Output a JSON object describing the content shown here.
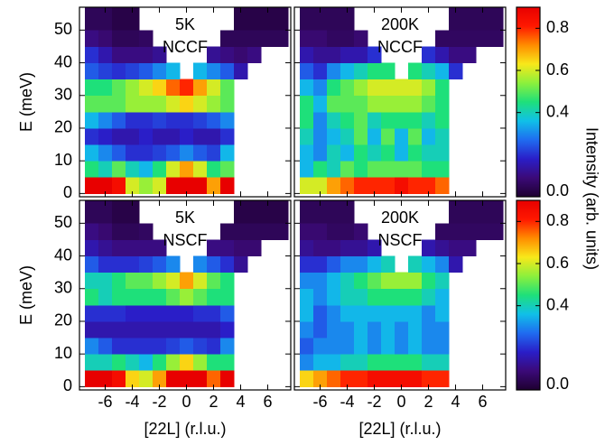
{
  "chart_data": [
    {
      "type": "heatmap",
      "annotation": [
        "5K",
        "NCCF"
      ],
      "ylabel": "E (meV)",
      "xlim": [
        -7.9,
        7.7
      ],
      "ylim": [
        -1,
        57
      ],
      "xticks": [
        -6,
        -4,
        -2,
        0,
        2,
        4,
        6
      ],
      "yticks": [
        0,
        10,
        20,
        30,
        40,
        50
      ],
      "show_xticklabels": false,
      "show_yticklabels": true,
      "xbins": [
        -7.5,
        -6.5,
        -5.5,
        -4.5,
        -3.5,
        -2.5,
        -1.5,
        -0.5,
        0.5,
        1.5,
        2.5,
        3.5,
        4.5,
        5.5,
        6.5,
        7.5
      ],
      "ybins": [
        0,
        5,
        10,
        15,
        20,
        25,
        30,
        35,
        40,
        45,
        50,
        57
      ],
      "z": [
        [
          0.9,
          0.9,
          0.85,
          0.6,
          0.55,
          0.6,
          0.9,
          0.95,
          0.9,
          0.7,
          0.9,
          null,
          null,
          null,
          null
        ],
        [
          0.45,
          0.4,
          0.5,
          0.4,
          0.35,
          0.45,
          0.6,
          0.7,
          0.6,
          0.45,
          0.5,
          null,
          null,
          null,
          null
        ],
        [
          0.35,
          0.3,
          0.25,
          0.2,
          0.2,
          0.22,
          0.25,
          0.3,
          0.25,
          0.22,
          0.35,
          null,
          null,
          null,
          null
        ],
        [
          0.2,
          0.18,
          0.15,
          0.15,
          0.18,
          0.15,
          0.15,
          0.18,
          0.15,
          0.15,
          0.2,
          null,
          null,
          null,
          null
        ],
        [
          0.35,
          0.3,
          0.25,
          0.2,
          0.2,
          0.22,
          0.2,
          0.2,
          0.22,
          0.25,
          0.3,
          null,
          null,
          null,
          null
        ],
        [
          0.5,
          0.5,
          0.5,
          0.55,
          0.55,
          0.55,
          0.6,
          0.65,
          0.6,
          0.55,
          0.5,
          null,
          null,
          null,
          null
        ],
        [
          0.45,
          0.45,
          0.5,
          0.55,
          0.6,
          0.65,
          0.75,
          0.8,
          0.7,
          0.6,
          0.5,
          null,
          null,
          null,
          null
        ],
        [
          0.25,
          0.22,
          0.2,
          0.22,
          0.25,
          0.3,
          0.35,
          null,
          0.35,
          0.3,
          0.25,
          0.15,
          null,
          null,
          null
        ],
        [
          0.2,
          0.15,
          0.1,
          0.1,
          0.1,
          0.12,
          null,
          null,
          null,
          0.12,
          0.1,
          0.08,
          0.1,
          null,
          null
        ],
        [
          0.1,
          0.08,
          0.05,
          0.05,
          0.06,
          null,
          null,
          null,
          null,
          null,
          0.05,
          0.05,
          0.05,
          0.05,
          0.05
        ],
        [
          0.05,
          0.05,
          0.03,
          0.03,
          null,
          null,
          null,
          null,
          null,
          null,
          null,
          0.03,
          0.03,
          0.03,
          0.03
        ]
      ]
    },
    {
      "type": "heatmap",
      "annotation": [
        "200K",
        "NCCF"
      ],
      "xlim": [
        -7.9,
        7.7
      ],
      "ylim": [
        -1,
        57
      ],
      "xticks": [
        -6,
        -4,
        -2,
        0,
        2,
        4,
        6
      ],
      "yticks": [
        0,
        10,
        20,
        30,
        40,
        50
      ],
      "show_xticklabels": false,
      "show_yticklabels": false,
      "xbins": [
        -7.5,
        -6.5,
        -5.5,
        -4.5,
        -3.5,
        -2.5,
        -1.5,
        -0.5,
        0.5,
        1.5,
        2.5,
        3.5,
        4.5,
        5.5,
        6.5,
        7.5
      ],
      "ybins": [
        0,
        5,
        10,
        15,
        20,
        25,
        30,
        35,
        40,
        45,
        50,
        57
      ],
      "z": [
        [
          0.6,
          0.6,
          0.7,
          0.75,
          0.8,
          0.8,
          0.8,
          0.85,
          0.8,
          0.8,
          0.75,
          null,
          null,
          null,
          null
        ],
        [
          0.35,
          0.45,
          0.4,
          0.5,
          0.45,
          0.5,
          0.5,
          0.5,
          0.5,
          0.45,
          0.45,
          null,
          null,
          null,
          null
        ],
        [
          0.35,
          0.3,
          0.4,
          0.35,
          0.45,
          0.4,
          0.45,
          0.35,
          0.45,
          0.4,
          0.4,
          null,
          null,
          null,
          null
        ],
        [
          0.4,
          0.3,
          0.35,
          0.4,
          0.5,
          0.35,
          0.5,
          0.35,
          0.5,
          0.35,
          0.4,
          null,
          null,
          null,
          null
        ],
        [
          0.45,
          0.3,
          0.4,
          0.45,
          0.5,
          0.4,
          0.45,
          0.45,
          0.45,
          0.4,
          0.45,
          null,
          null,
          null,
          null
        ],
        [
          0.45,
          0.35,
          0.5,
          0.5,
          0.5,
          0.55,
          0.55,
          0.55,
          0.55,
          0.5,
          0.45,
          null,
          null,
          null,
          null
        ],
        [
          0.35,
          0.3,
          0.45,
          0.5,
          0.55,
          0.6,
          0.6,
          0.6,
          0.6,
          0.55,
          0.45,
          null,
          null,
          null,
          null
        ],
        [
          0.25,
          0.2,
          0.3,
          0.35,
          0.4,
          0.45,
          0.45,
          null,
          0.45,
          0.4,
          0.35,
          0.2,
          null,
          null,
          null
        ],
        [
          0.15,
          0.12,
          0.12,
          0.15,
          0.15,
          0.2,
          null,
          null,
          null,
          0.2,
          0.15,
          0.1,
          0.1,
          null,
          null
        ],
        [
          0.08,
          0.08,
          0.06,
          0.06,
          0.08,
          null,
          null,
          null,
          null,
          null,
          0.06,
          0.06,
          0.06,
          0.06,
          0.06
        ],
        [
          0.05,
          0.05,
          0.05,
          0.05,
          null,
          null,
          null,
          null,
          null,
          null,
          null,
          0.05,
          0.05,
          0.05,
          0.05
        ]
      ]
    },
    {
      "type": "heatmap",
      "annotation": [
        "5K",
        "NSCF"
      ],
      "ylabel": "E (meV)",
      "xlabel": "[22L] (r.l.u.)",
      "xlim": [
        -7.9,
        7.7
      ],
      "ylim": [
        -1,
        57
      ],
      "xticks": [
        -6,
        -4,
        -2,
        0,
        2,
        4,
        6
      ],
      "yticks": [
        0,
        10,
        20,
        30,
        40,
        50
      ],
      "show_xticklabels": true,
      "show_yticklabels": true,
      "xbins": [
        -7.5,
        -6.5,
        -5.5,
        -4.5,
        -3.5,
        -2.5,
        -1.5,
        -0.5,
        0.5,
        1.5,
        2.5,
        3.5,
        4.5,
        5.5,
        6.5,
        7.5
      ],
      "ybins": [
        0,
        5,
        10,
        15,
        20,
        25,
        30,
        35,
        40,
        45,
        50,
        57
      ],
      "z": [
        [
          0.9,
          0.9,
          0.85,
          0.65,
          0.6,
          0.7,
          0.9,
          0.95,
          0.9,
          0.75,
          0.9,
          null,
          null,
          null,
          null
        ],
        [
          0.4,
          0.4,
          0.45,
          0.4,
          0.35,
          0.45,
          0.55,
          0.65,
          0.55,
          0.45,
          0.45,
          null,
          null,
          null,
          null
        ],
        [
          0.3,
          0.25,
          0.2,
          0.2,
          0.2,
          0.2,
          0.22,
          0.25,
          0.22,
          0.2,
          0.3,
          null,
          null,
          null,
          null
        ],
        [
          0.15,
          0.15,
          0.15,
          0.15,
          0.15,
          0.15,
          0.15,
          0.15,
          0.15,
          0.15,
          0.18,
          null,
          null,
          null,
          null
        ],
        [
          0.2,
          0.2,
          0.2,
          0.18,
          0.18,
          0.18,
          0.18,
          0.18,
          0.2,
          0.2,
          0.25,
          null,
          null,
          null,
          null
        ],
        [
          0.45,
          0.4,
          0.45,
          0.45,
          0.45,
          0.45,
          0.5,
          0.55,
          0.5,
          0.45,
          0.45,
          null,
          null,
          null,
          null
        ],
        [
          0.4,
          0.4,
          0.45,
          0.5,
          0.5,
          0.55,
          0.6,
          0.7,
          0.6,
          0.5,
          0.45,
          null,
          null,
          null,
          null
        ],
        [
          0.25,
          0.2,
          0.2,
          0.2,
          0.22,
          0.25,
          0.3,
          null,
          0.3,
          0.25,
          0.2,
          0.12,
          null,
          null,
          null
        ],
        [
          0.15,
          0.12,
          0.1,
          0.1,
          0.1,
          0.1,
          null,
          null,
          null,
          0.1,
          0.1,
          0.08,
          0.08,
          null,
          null
        ],
        [
          0.1,
          0.08,
          0.05,
          0.05,
          0.06,
          null,
          null,
          null,
          null,
          null,
          0.05,
          0.05,
          0.05,
          0.05,
          0.05
        ],
        [
          0.05,
          0.05,
          0.03,
          0.03,
          null,
          null,
          null,
          null,
          null,
          null,
          null,
          0.03,
          0.03,
          0.03,
          0.03
        ]
      ]
    },
    {
      "type": "heatmap",
      "annotation": [
        "200K",
        "NSCF"
      ],
      "xlabel": "[22L] (r.l.u.)",
      "xlim": [
        -7.9,
        7.7
      ],
      "ylim": [
        -1,
        57
      ],
      "xticks": [
        -6,
        -4,
        -2,
        0,
        2,
        4,
        6
      ],
      "yticks": [
        0,
        10,
        20,
        30,
        40,
        50
      ],
      "show_xticklabels": true,
      "show_yticklabels": false,
      "xbins": [
        -7.5,
        -6.5,
        -5.5,
        -4.5,
        -3.5,
        -2.5,
        -1.5,
        -0.5,
        0.5,
        1.5,
        2.5,
        3.5,
        4.5,
        5.5,
        6.5,
        7.5
      ],
      "ybins": [
        0,
        5,
        10,
        15,
        20,
        25,
        30,
        35,
        40,
        45,
        50,
        57
      ],
      "z": [
        [
          0.65,
          0.7,
          0.75,
          0.8,
          0.8,
          0.85,
          0.85,
          0.85,
          0.85,
          0.8,
          0.8,
          null,
          null,
          null,
          null
        ],
        [
          0.3,
          0.35,
          0.35,
          0.4,
          0.4,
          0.45,
          0.45,
          0.45,
          0.45,
          0.4,
          0.4,
          null,
          null,
          null,
          null
        ],
        [
          0.25,
          0.3,
          0.3,
          0.3,
          0.35,
          0.3,
          0.35,
          0.3,
          0.35,
          0.3,
          0.3,
          null,
          null,
          null,
          null
        ],
        [
          0.3,
          0.25,
          0.3,
          0.3,
          0.35,
          0.3,
          0.35,
          0.3,
          0.35,
          0.3,
          0.3,
          null,
          null,
          null,
          null
        ],
        [
          0.35,
          0.25,
          0.3,
          0.35,
          0.35,
          0.35,
          0.35,
          0.35,
          0.35,
          0.3,
          0.35,
          null,
          null,
          null,
          null
        ],
        [
          0.35,
          0.3,
          0.35,
          0.4,
          0.4,
          0.45,
          0.45,
          0.45,
          0.45,
          0.4,
          0.35,
          null,
          null,
          null,
          null
        ],
        [
          0.3,
          0.3,
          0.35,
          0.4,
          0.45,
          0.5,
          0.55,
          0.55,
          0.55,
          0.45,
          0.4,
          null,
          null,
          null,
          null
        ],
        [
          0.2,
          0.2,
          0.25,
          0.3,
          0.3,
          0.35,
          0.4,
          null,
          0.4,
          0.35,
          0.3,
          0.15,
          null,
          null,
          null
        ],
        [
          0.12,
          0.1,
          0.1,
          0.12,
          0.12,
          0.15,
          null,
          null,
          null,
          0.15,
          0.12,
          0.1,
          0.1,
          null,
          null
        ],
        [
          0.08,
          0.08,
          0.06,
          0.06,
          0.08,
          null,
          null,
          null,
          null,
          null,
          0.06,
          0.06,
          0.06,
          0.06,
          0.06
        ],
        [
          0.05,
          0.05,
          0.05,
          0.05,
          null,
          null,
          null,
          null,
          null,
          null,
          null,
          0.05,
          0.05,
          0.05,
          0.05
        ]
      ]
    },
    {
      "type": "colorbar",
      "label": "Intensity (arb. units)",
      "clim": [
        0,
        0.9
      ],
      "ticks": [
        {
          "value": 0,
          "label": "0.0"
        },
        0.4,
        0.6,
        0.8
      ],
      "colors": [
        "#1e0030",
        "#3b0a78",
        "#2a1ec8",
        "#1f6cf0",
        "#10c0e8",
        "#1ee07a",
        "#8cf03c",
        "#f8e81a",
        "#ff8c00",
        "#ff1800",
        "#e80000"
      ]
    },
    {
      "type": "colorbar",
      "clim": [
        0,
        0.9
      ],
      "ticks": [
        {
          "value": 0,
          "label": "0.0"
        },
        0.4,
        0.6,
        0.8
      ],
      "colors": [
        "#1e0030",
        "#3b0a78",
        "#2a1ec8",
        "#1f6cf0",
        "#10c0e8",
        "#1ee07a",
        "#8cf03c",
        "#f8e81a",
        "#ff8c00",
        "#ff1800",
        "#e80000"
      ]
    }
  ]
}
